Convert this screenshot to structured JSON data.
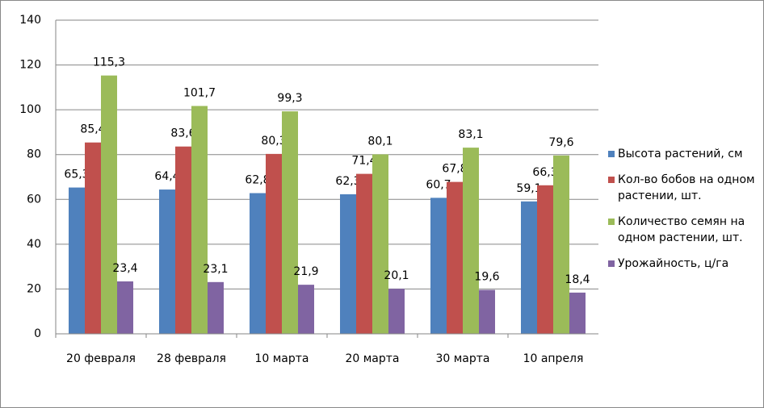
{
  "chart_data": {
    "type": "bar",
    "categories": [
      "20 февраля",
      "28 февраля",
      "10 марта",
      "20 марта",
      "30 марта",
      "10 апреля"
    ],
    "series": [
      {
        "name": "Высота растений, см",
        "color": "#4f81bd",
        "values": [
          65.3,
          64.4,
          62.8,
          62.3,
          60.7,
          59.1
        ],
        "value_labels": [
          "65,3",
          "64,4",
          "62,8",
          "62,3",
          "60,7",
          "59,1"
        ]
      },
      {
        "name": "Кол-во бобов на одном растении, шт.",
        "color": "#c0504d",
        "values": [
          85.4,
          83.6,
          80.3,
          71.4,
          67.8,
          66.3
        ],
        "value_labels": [
          "85,4",
          "83,6",
          "80,3",
          "71,4",
          "67,8",
          "66,3"
        ]
      },
      {
        "name": "Количество семян на одном растении, шт.",
        "color": "#9bbb59",
        "values": [
          115.3,
          101.7,
          99.3,
          80.1,
          83.1,
          79.6
        ],
        "value_labels": [
          "115,3",
          "101,7",
          "99,3",
          "80,1",
          "83,1",
          "79,6"
        ]
      },
      {
        "name": "Урожайность, ц/га",
        "color": "#8064a2",
        "values": [
          23.4,
          23.1,
          21.9,
          20.1,
          19.6,
          18.4
        ],
        "value_labels": [
          "23,4",
          "23,1",
          "21,9",
          "20,1",
          "19,6",
          "18,4"
        ]
      }
    ],
    "ylim": [
      0,
      140
    ],
    "yticks": [
      0,
      20,
      40,
      60,
      80,
      100,
      120,
      140
    ],
    "grid": true,
    "legend": "right"
  }
}
